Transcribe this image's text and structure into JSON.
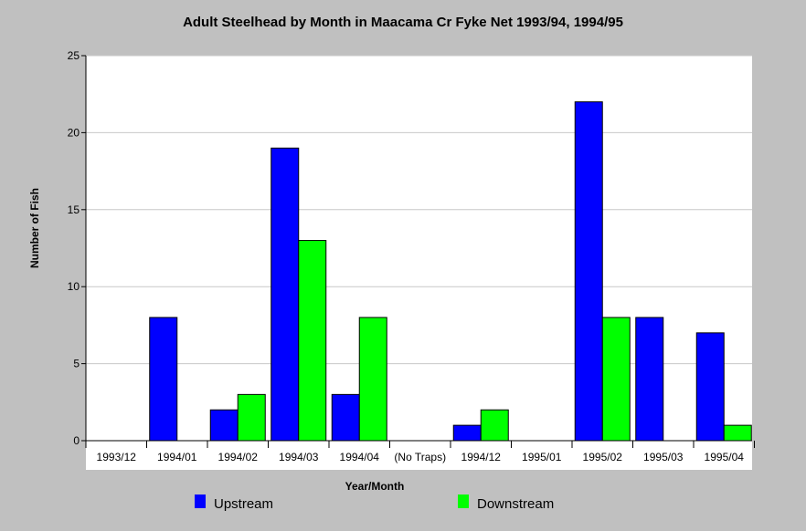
{
  "chart_data": {
    "type": "bar",
    "title": "Adult Steelhead by Month in Maacama Cr Fyke Net 1993/94, 1994/95",
    "xlabel": "Year/Month",
    "ylabel": "Number of Fish",
    "ylim": [
      0,
      25
    ],
    "yticks": [
      0,
      5,
      10,
      15,
      20,
      25
    ],
    "grid": true,
    "legend_position": "bottom",
    "categories": [
      "1993/12",
      "1994/01",
      "1994/02",
      "1994/03",
      "1994/04",
      "(No Traps)",
      "1994/12",
      "1995/01",
      "1995/02",
      "1995/03",
      "1995/04"
    ],
    "series": [
      {
        "name": "Upstream",
        "color": "#0000ff",
        "values": [
          0,
          8,
          2,
          19,
          3,
          0,
          1,
          0,
          22,
          8,
          7
        ]
      },
      {
        "name": "Downstream",
        "color": "#00ff00",
        "values": [
          0,
          0,
          3,
          13,
          8,
          0,
          2,
          0,
          8,
          0,
          1
        ]
      }
    ]
  }
}
